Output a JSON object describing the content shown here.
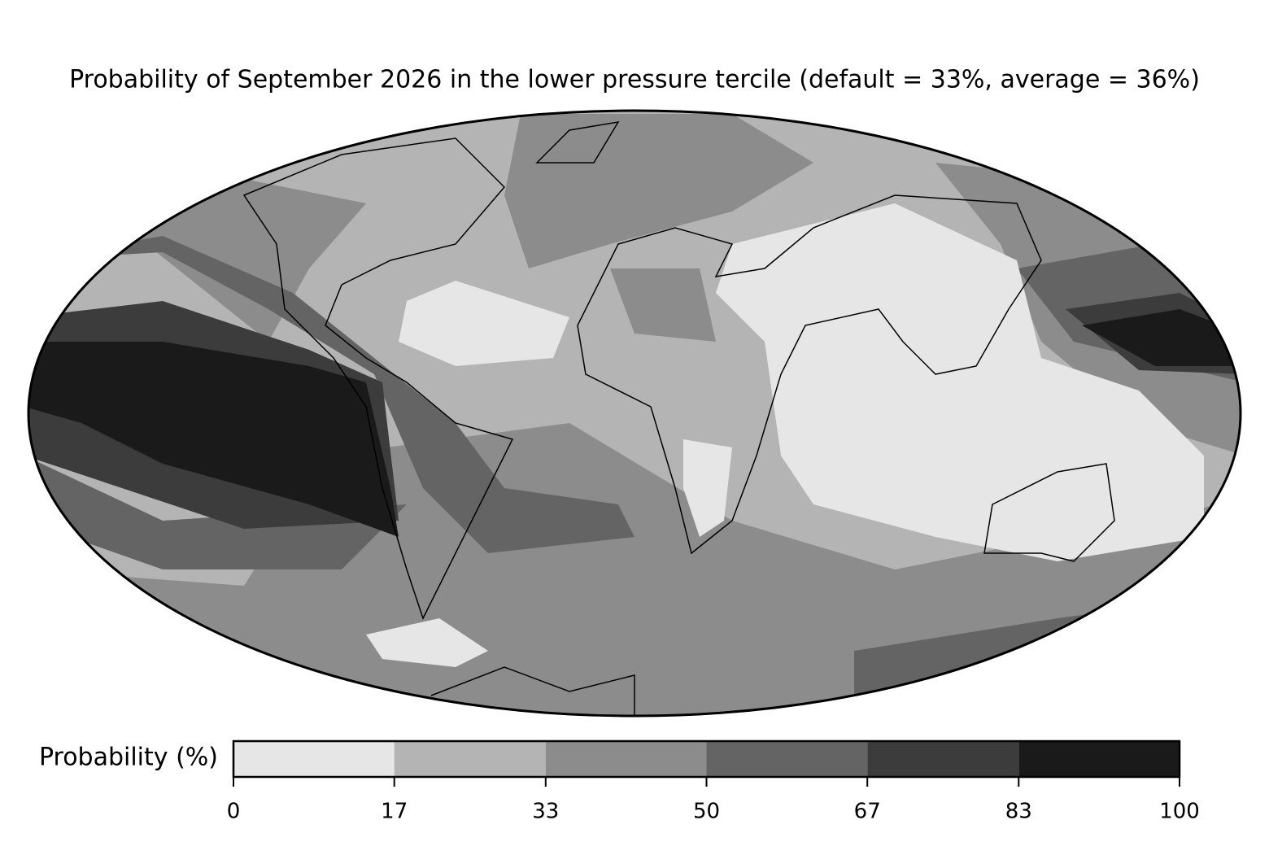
{
  "title": "Probability of September 2026 in the lower pressure tercile (default = 33%, average = 36%)",
  "colorbar": {
    "label": "Probability (%)",
    "ticks": [
      0,
      17,
      33,
      50,
      67,
      83,
      100
    ],
    "colors": [
      "#e6e6e6",
      "#b4b4b4",
      "#8c8c8c",
      "#646464",
      "#3c3c3c",
      "#1a1a1a"
    ]
  }
}
